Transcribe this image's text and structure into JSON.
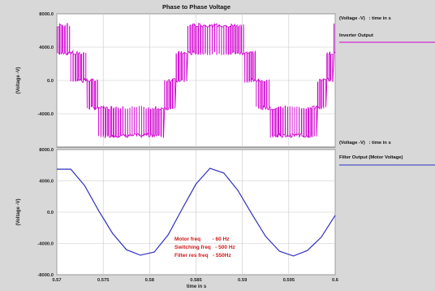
{
  "title": "Phase to Phase Voltage",
  "xlabel": "time in s",
  "colors": {
    "background": "#d8d8d8",
    "plot_bg": "#ffffff",
    "inverter": "#d000d0",
    "filter": "#3030c0",
    "annotation": "#d01818"
  },
  "annotation": {
    "lines": [
      "Motor freq        - 60 Hz",
      "Switching freq   - 500 Hz",
      "Filter res freq   - 550Hz"
    ]
  },
  "chart_data": [
    {
      "type": "line",
      "title": "Phase to Phase Voltage",
      "ylabel": "(Voltage -V)",
      "xlabel": "",
      "xlim": [
        0.57,
        0.6
      ],
      "ylim": [
        -8000,
        8000
      ],
      "yticks": [
        "8000.0",
        "4000.0",
        "0.0",
        "-4000.0"
      ],
      "grid": true,
      "legend": {
        "position": "right",
        "header": "(Voltage -V)   : time in s",
        "entry": "Inverter Output"
      },
      "series": [
        {
          "name": "Inverter Output",
          "x": [
            0.57,
            0.5715,
            0.573,
            0.5745,
            0.576,
            0.5775,
            0.579,
            0.5805,
            0.582,
            0.5835,
            0.585,
            0.5865,
            0.588,
            0.5895,
            0.591,
            0.5925,
            0.594,
            0.5955,
            0.597,
            0.5985,
            0.6
          ],
          "y": [
            5600,
            3400,
            400,
            -3200,
            -5600,
            -6400,
            -6600,
            -5600,
            -2200,
            2200,
            5600,
            6400,
            6400,
            4800,
            1600,
            -2400,
            -5800,
            -6600,
            -5800,
            -1600,
            4000
          ]
        }
      ]
    },
    {
      "type": "line",
      "ylabel": "(Voltage -V)",
      "xlabel": "time in s",
      "xlim": [
        0.57,
        0.6
      ],
      "ylim": [
        -8000,
        8000
      ],
      "xticks": [
        "0.57",
        "0.575",
        "0.58",
        "0.585",
        "0.59",
        "0.595",
        "0.6"
      ],
      "yticks": [
        "8000.0",
        "4000.0",
        "0.0",
        "-4000.0",
        "-8000.0"
      ],
      "grid": true,
      "legend": {
        "position": "right",
        "header": "(Voltage -V)   : time in s",
        "entry": "Filter Output (Motor Voltage)"
      },
      "series": [
        {
          "name": "Filter Output (Motor Voltage)",
          "x": [
            0.57,
            0.5715,
            0.573,
            0.5745,
            0.576,
            0.5775,
            0.579,
            0.5805,
            0.582,
            0.5835,
            0.585,
            0.5865,
            0.588,
            0.5895,
            0.591,
            0.5925,
            0.594,
            0.5955,
            0.597,
            0.5985,
            0.6
          ],
          "y": [
            5500,
            5500,
            3400,
            200,
            -2700,
            -4800,
            -5500,
            -5100,
            -2900,
            400,
            3600,
            5600,
            5000,
            2800,
            -200,
            -3100,
            -5000,
            -5600,
            -4900,
            -3200,
            -400
          ]
        }
      ]
    }
  ]
}
